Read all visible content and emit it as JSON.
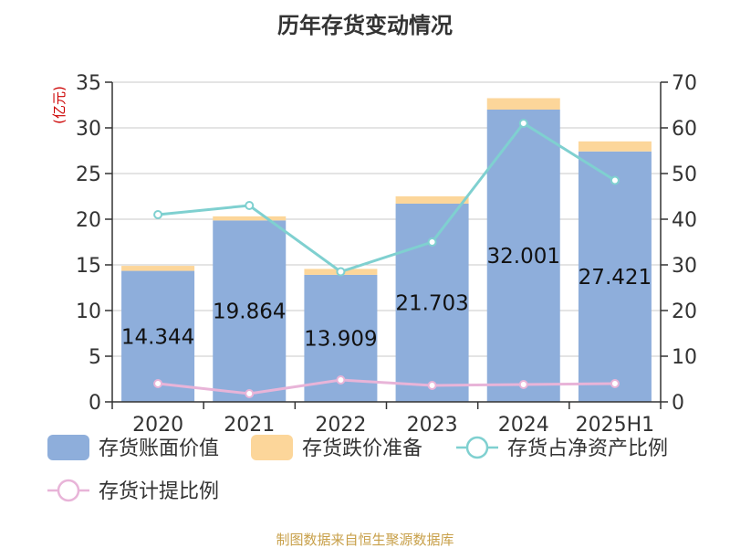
{
  "chart_data": {
    "type": "bar",
    "title": "历年存货变动情况",
    "left_unit": "(亿元)",
    "categories": [
      "2020",
      "2021",
      "2022",
      "2023",
      "2024",
      "2025H1"
    ],
    "left_axis": {
      "ylim": [
        0,
        35
      ],
      "ticks": [
        0,
        5,
        10,
        15,
        20,
        25,
        30,
        35
      ]
    },
    "right_axis": {
      "ylim": [
        0,
        70
      ],
      "ticks": [
        0,
        10,
        20,
        30,
        40,
        50,
        60,
        70
      ]
    },
    "series": [
      {
        "name": "存货账面价值",
        "kind": "bar",
        "axis": "left",
        "color": "#8eaedb",
        "values": [
          14.344,
          19.864,
          13.909,
          21.703,
          32.001,
          27.421
        ],
        "labels": [
          "14.344",
          "19.864",
          "13.909",
          "21.703",
          "32.001",
          "27.421"
        ]
      },
      {
        "name": "存货跌价准备",
        "kind": "bar-stack",
        "axis": "left",
        "color": "#fcd69a",
        "values": [
          0.55,
          0.45,
          0.65,
          0.8,
          1.25,
          1.1
        ]
      },
      {
        "name": "存货占净资产比例",
        "kind": "line",
        "axis": "right",
        "color": "#7fd0d0",
        "values": [
          41,
          43,
          28.5,
          35,
          61,
          48.5
        ]
      },
      {
        "name": "存货计提比例",
        "kind": "line",
        "axis": "right",
        "color": "#e8b4d8",
        "values": [
          4,
          1.8,
          4.8,
          3.6,
          3.8,
          4
        ]
      }
    ],
    "grid": true
  },
  "footer": {
    "source": "制图数据来自恒生聚源数据库"
  }
}
